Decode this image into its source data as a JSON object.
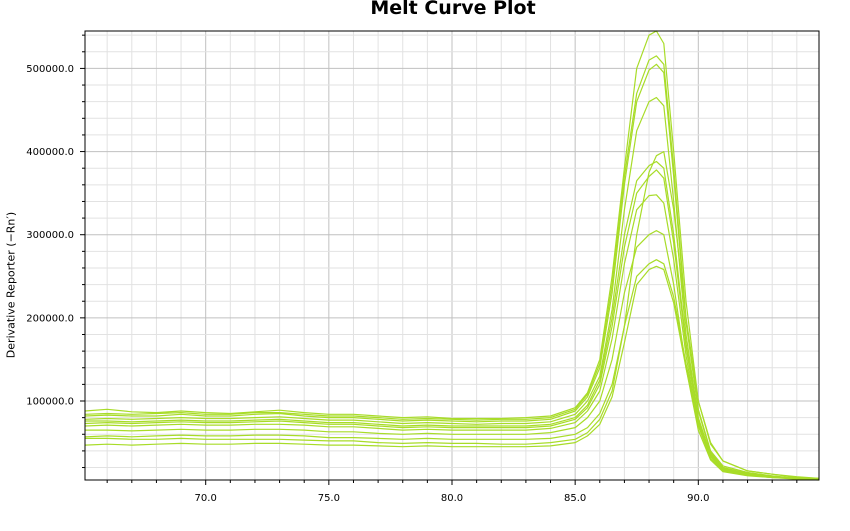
{
  "chart_data": {
    "type": "line",
    "title": "Melt Curve Plot",
    "xlabel": "",
    "ylabel": "Derivative Reporter (−Rn′)",
    "xlim": [
      65.1,
      94.9
    ],
    "ylim": [
      5000,
      545000
    ],
    "x_ticks": [
      70,
      75,
      80,
      85,
      90
    ],
    "x_tick_labels": [
      "70.0",
      "75.0",
      "80.0",
      "85.0",
      "90.0"
    ],
    "y_ticks": [
      100000,
      200000,
      300000,
      400000,
      500000
    ],
    "y_tick_labels": [
      "100000.0",
      "200000.0",
      "300000.0",
      "400000.0",
      "500000.0"
    ],
    "grid": true,
    "series_color": "#a8dc28",
    "x": [
      65.1,
      66,
      67,
      68,
      69,
      70,
      71,
      72,
      73,
      74,
      75,
      76,
      77,
      78,
      79,
      80,
      81,
      82,
      83,
      84,
      85,
      85.5,
      86,
      86.5,
      87,
      87.5,
      88,
      88.3,
      88.6,
      89,
      89.5,
      90,
      90.5,
      91,
      92,
      93,
      94,
      94.9
    ],
    "series": [
      {
        "values": [
          88000,
          90000,
          87000,
          86000,
          88000,
          86000,
          85000,
          87000,
          89000,
          86000,
          84000,
          84000,
          82000,
          80000,
          81000,
          79000,
          79000,
          79000,
          80000,
          82000,
          92000,
          110000,
          150000,
          250000,
          380000,
          500000,
          540000,
          545000,
          530000,
          400000,
          220000,
          100000,
          48000,
          28000,
          16000,
          12000,
          8000,
          7000
        ]
      },
      {
        "values": [
          84000,
          85000,
          84000,
          85000,
          86000,
          84000,
          84000,
          86000,
          86000,
          84000,
          82000,
          82000,
          80000,
          78000,
          79000,
          78000,
          77000,
          78000,
          78000,
          80000,
          90000,
          108000,
          145000,
          240000,
          370000,
          470000,
          510000,
          515000,
          505000,
          380000,
          200000,
          90000,
          40000,
          22000,
          14000,
          10000,
          7000,
          6000
        ]
      },
      {
        "values": [
          82000,
          83000,
          82000,
          82000,
          84000,
          82000,
          82000,
          84000,
          85000,
          82000,
          80000,
          80000,
          78000,
          76000,
          77000,
          76000,
          75000,
          76000,
          76000,
          78000,
          88000,
          105000,
          140000,
          230000,
          360000,
          460000,
          498000,
          505000,
          495000,
          370000,
          195000,
          88000,
          38000,
          20000,
          13000,
          9000,
          7000,
          6000
        ]
      },
      {
        "values": [
          78000,
          79000,
          78000,
          79000,
          80000,
          79000,
          79000,
          80000,
          81000,
          79000,
          77000,
          77000,
          75000,
          73000,
          74000,
          73000,
          72000,
          73000,
          73000,
          75000,
          84000,
          100000,
          130000,
          210000,
          330000,
          425000,
          460000,
          465000,
          455000,
          340000,
          180000,
          80000,
          35000,
          18000,
          12000,
          9000,
          7000,
          6000
        ]
      },
      {
        "values": [
          76000,
          76000,
          75000,
          76000,
          77000,
          76000,
          76000,
          77000,
          78000,
          76000,
          74000,
          74000,
          72000,
          70000,
          71000,
          70000,
          70000,
          70000,
          70000,
          72000,
          80000,
          95000,
          125000,
          200000,
          300000,
          365000,
          383000,
          388000,
          380000,
          300000,
          170000,
          78000,
          34000,
          18000,
          12000,
          9000,
          7000,
          6000
        ]
      },
      {
        "values": [
          73000,
          74000,
          73000,
          74000,
          75000,
          74000,
          74000,
          75000,
          76000,
          74000,
          72000,
          72000,
          70000,
          68000,
          69000,
          68000,
          68000,
          68000,
          68000,
          70000,
          78000,
          92000,
          120000,
          190000,
          285000,
          350000,
          370000,
          378000,
          368000,
          290000,
          165000,
          75000,
          33000,
          17000,
          11000,
          8000,
          7000,
          6000
        ]
      },
      {
        "values": [
          70000,
          71000,
          70000,
          71000,
          72000,
          71000,
          71000,
          72000,
          72000,
          71000,
          69000,
          69000,
          67000,
          65000,
          66000,
          65000,
          65000,
          65000,
          65000,
          67000,
          74000,
          88000,
          112000,
          175000,
          265000,
          330000,
          347000,
          348000,
          338000,
          270000,
          155000,
          70000,
          31000,
          16000,
          11000,
          8000,
          7000,
          6000
        ]
      },
      {
        "values": [
          65000,
          65000,
          64000,
          65000,
          66000,
          65000,
          65000,
          66000,
          66000,
          65000,
          63000,
          63000,
          61000,
          60000,
          61000,
          60000,
          60000,
          60000,
          60000,
          62000,
          68000,
          80000,
          100000,
          150000,
          230000,
          285000,
          300000,
          305000,
          300000,
          240000,
          140000,
          65000,
          29000,
          15000,
          10000,
          8000,
          6000,
          5000
        ]
      },
      {
        "values": [
          57000,
          58000,
          57000,
          58000,
          59000,
          58000,
          58000,
          59000,
          59000,
          58000,
          56000,
          56000,
          55000,
          54000,
          55000,
          54000,
          54000,
          54000,
          54000,
          55000,
          60000,
          68000,
          85000,
          120000,
          190000,
          250000,
          265000,
          270000,
          265000,
          225000,
          145000,
          75000,
          38000,
          20000,
          12000,
          9000,
          7000,
          6000
        ]
      },
      {
        "values": [
          55000,
          55000,
          54000,
          54000,
          55000,
          54000,
          54000,
          54000,
          54000,
          53000,
          52000,
          52000,
          50000,
          49000,
          50000,
          49000,
          49000,
          48000,
          48000,
          50000,
          54000,
          62000,
          78000,
          112000,
          190000,
          300000,
          375000,
          395000,
          400000,
          330000,
          200000,
          100000,
          50000,
          28000,
          16000,
          12000,
          9000,
          7000
        ]
      },
      {
        "values": [
          47000,
          48000,
          47000,
          48000,
          49000,
          48000,
          48000,
          49000,
          49000,
          48000,
          47000,
          47000,
          46000,
          45000,
          46000,
          45000,
          45000,
          45000,
          45000,
          46000,
          50000,
          58000,
          72000,
          105000,
          170000,
          240000,
          258000,
          262000,
          258000,
          218000,
          140000,
          72000,
          36000,
          19000,
          12000,
          9000,
          7000,
          6000
        ]
      }
    ]
  }
}
